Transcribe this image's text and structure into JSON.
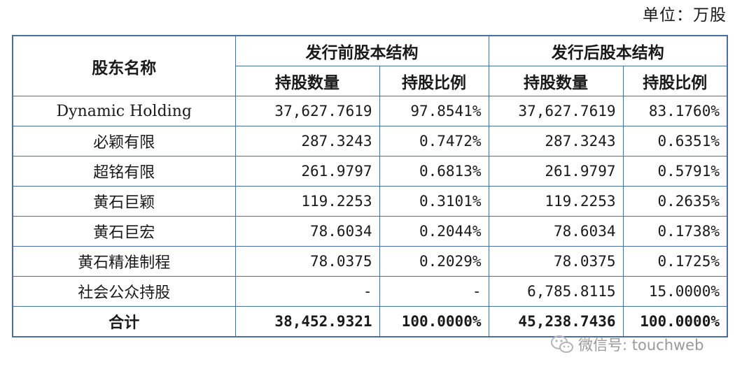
{
  "unit_label": "单位：万股",
  "header": {
    "shareholder_name": "股东名称",
    "pre_issue": "发行前股本结构",
    "post_issue": "发行后股本结构",
    "shares": "持股数量",
    "ratio": "持股比例"
  },
  "rows": [
    {
      "name": "Dynamic Holding",
      "pre_shares": "37,627.7619",
      "pre_ratio": "97.8541%",
      "post_shares": "37,627.7619",
      "post_ratio": "83.1760%"
    },
    {
      "name": "必颖有限",
      "pre_shares": "287.3243",
      "pre_ratio": "0.7472%",
      "post_shares": "287.3243",
      "post_ratio": "0.6351%"
    },
    {
      "name": "超铭有限",
      "pre_shares": "261.9797",
      "pre_ratio": "0.6813%",
      "post_shares": "261.9797",
      "post_ratio": "0.5791%"
    },
    {
      "name": "黄石巨颖",
      "pre_shares": "119.2253",
      "pre_ratio": "0.3101%",
      "post_shares": "119.2253",
      "post_ratio": "0.2635%"
    },
    {
      "name": "黄石巨宏",
      "pre_shares": "78.6034",
      "pre_ratio": "0.2044%",
      "post_shares": "78.6034",
      "post_ratio": "0.1738%"
    },
    {
      "name": "黄石精准制程",
      "pre_shares": "78.0375",
      "pre_ratio": "0.2029%",
      "post_shares": "78.0375",
      "post_ratio": "0.1725%"
    },
    {
      "name": "社会公众持股",
      "pre_shares": "-",
      "pre_ratio": "-",
      "post_shares": "6,785.8115",
      "post_ratio": "15.0000%"
    }
  ],
  "total": {
    "name": "合计",
    "pre_shares": "38,452.9321",
    "pre_ratio": "100.0000%",
    "post_shares": "45,238.7436",
    "post_ratio": "100.0000%"
  },
  "watermark": {
    "text": "微信号: touchweb",
    "icon": "wechat-icon",
    "color": "#9a9a9a"
  },
  "colors": {
    "border": "#4a6fa5"
  }
}
